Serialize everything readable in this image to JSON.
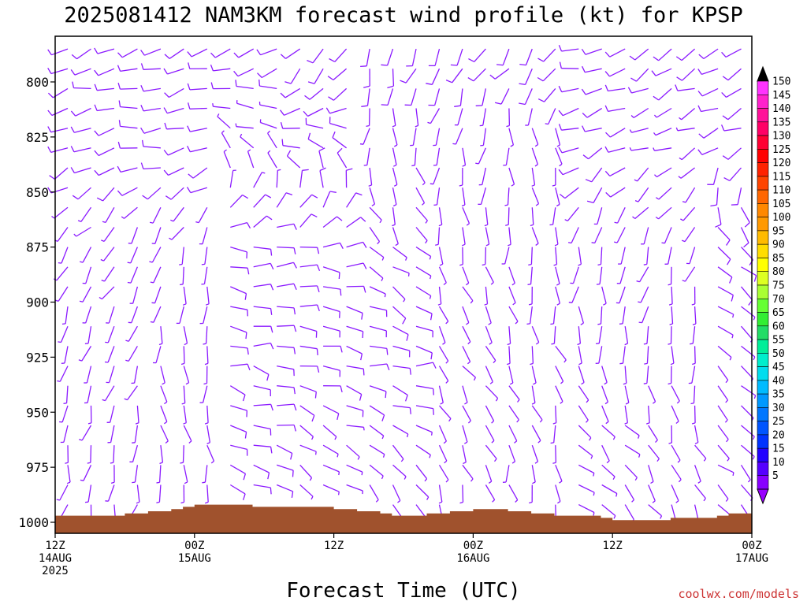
{
  "chart_data": {
    "type": "wind-barb time-height",
    "title": "2025081412 NAM3KM forecast wind profile (kt) for KPSP",
    "xlabel": "Forecast Time (UTC)",
    "ylabel": "",
    "y_ticks": [
      800,
      825,
      850,
      875,
      900,
      925,
      950,
      975,
      1000
    ],
    "y_range_hpa": [
      780,
      1005
    ],
    "x_range_hours": [
      0,
      60
    ],
    "x_ticks": [
      {
        "hour": 0,
        "line1": "12Z",
        "line2": "14AUG",
        "line3": "2025"
      },
      {
        "hour": 12,
        "line1": "00Z",
        "line2": "15AUG",
        "line3": ""
      },
      {
        "hour": 24,
        "line1": "12Z",
        "line2": "",
        "line3": ""
      },
      {
        "hour": 36,
        "line1": "00Z",
        "line2": "16AUG",
        "line3": ""
      },
      {
        "hour": 48,
        "line1": "12Z",
        "line2": "",
        "line3": ""
      },
      {
        "hour": 60,
        "line1": "00Z",
        "line2": "17AUG",
        "line3": ""
      }
    ],
    "barb_color": "#8b1aff",
    "terrain_color": "#a0522d",
    "surface_pressure_hpa": [
      [
        0,
        997
      ],
      [
        2,
        997
      ],
      [
        4,
        997
      ],
      [
        6,
        996
      ],
      [
        8,
        995
      ],
      [
        10,
        994
      ],
      [
        11,
        993
      ],
      [
        12,
        992
      ],
      [
        14,
        992
      ],
      [
        16,
        992
      ],
      [
        17,
        993
      ],
      [
        19,
        993
      ],
      [
        21,
        993
      ],
      [
        23,
        993
      ],
      [
        24,
        994
      ],
      [
        26,
        995
      ],
      [
        28,
        996
      ],
      [
        29,
        997
      ],
      [
        30,
        997
      ],
      [
        32,
        996
      ],
      [
        34,
        995
      ],
      [
        36,
        994
      ],
      [
        37,
        994
      ],
      [
        38,
        994
      ],
      [
        39,
        995
      ],
      [
        41,
        996
      ],
      [
        43,
        997
      ],
      [
        45,
        997
      ],
      [
        47,
        998
      ],
      [
        48,
        999
      ],
      [
        49,
        999
      ],
      [
        51,
        999
      ],
      [
        52,
        999
      ],
      [
        53,
        998
      ],
      [
        55,
        998
      ],
      [
        57,
        997
      ],
      [
        58,
        996
      ],
      [
        60,
        996
      ]
    ],
    "wind_profile": [
      {
        "period_hours": [
          0,
          6
        ],
        "levels": [
          {
            "p": 790,
            "dir": 250,
            "spd": 10
          },
          {
            "p": 825,
            "dir": 260,
            "spd": 10
          },
          {
            "p": 875,
            "dir": 210,
            "spd": 5
          },
          {
            "p": 925,
            "dir": 200,
            "spd": 5
          },
          {
            "p": 975,
            "dir": 190,
            "spd": 5
          }
        ]
      },
      {
        "period_hours": [
          6,
          12
        ],
        "levels": [
          {
            "p": 790,
            "dir": 250,
            "spd": 10
          },
          {
            "p": 825,
            "dir": 270,
            "spd": 10
          },
          {
            "p": 875,
            "dir": 200,
            "spd": 5
          },
          {
            "p": 925,
            "dir": 180,
            "spd": 5
          },
          {
            "p": 975,
            "dir": 170,
            "spd": 5
          }
        ]
      },
      {
        "period_hours": [
          12,
          18
        ],
        "levels": [
          {
            "p": 790,
            "dir": 240,
            "spd": 10
          },
          {
            "p": 825,
            "dir": 300,
            "spd": 5
          },
          {
            "p": 875,
            "dir": 90,
            "spd": 10
          },
          {
            "p": 925,
            "dir": 100,
            "spd": 10
          },
          {
            "p": 975,
            "dir": 110,
            "spd": 10
          }
        ]
      },
      {
        "period_hours": [
          18,
          24
        ],
        "levels": [
          {
            "p": 790,
            "dir": 220,
            "spd": 10
          },
          {
            "p": 825,
            "dir": 280,
            "spd": 10
          },
          {
            "p": 875,
            "dir": 90,
            "spd": 10
          },
          {
            "p": 925,
            "dir": 100,
            "spd": 10
          },
          {
            "p": 975,
            "dir": 120,
            "spd": 5
          }
        ]
      },
      {
        "period_hours": [
          24,
          30
        ],
        "levels": [
          {
            "p": 790,
            "dir": 200,
            "spd": 10
          },
          {
            "p": 825,
            "dir": 180,
            "spd": 5
          },
          {
            "p": 875,
            "dir": 140,
            "spd": 5
          },
          {
            "p": 925,
            "dir": 90,
            "spd": 10
          },
          {
            "p": 975,
            "dir": 150,
            "spd": 5
          }
        ]
      },
      {
        "period_hours": [
          30,
          36
        ],
        "levels": [
          {
            "p": 790,
            "dir": 210,
            "spd": 10
          },
          {
            "p": 825,
            "dir": 190,
            "spd": 5
          },
          {
            "p": 875,
            "dir": 170,
            "spd": 5
          },
          {
            "p": 925,
            "dir": 150,
            "spd": 5
          },
          {
            "p": 975,
            "dir": 160,
            "spd": 5
          }
        ]
      },
      {
        "period_hours": [
          36,
          42
        ],
        "levels": [
          {
            "p": 790,
            "dir": 220,
            "spd": 10
          },
          {
            "p": 825,
            "dir": 170,
            "spd": 5
          },
          {
            "p": 875,
            "dir": 180,
            "spd": 5
          },
          {
            "p": 925,
            "dir": 160,
            "spd": 5
          },
          {
            "p": 975,
            "dir": 170,
            "spd": 5
          }
        ]
      },
      {
        "period_hours": [
          42,
          48
        ],
        "levels": [
          {
            "p": 790,
            "dir": 260,
            "spd": 10
          },
          {
            "p": 825,
            "dir": 250,
            "spd": 10
          },
          {
            "p": 875,
            "dir": 190,
            "spd": 5
          },
          {
            "p": 925,
            "dir": 170,
            "spd": 5
          },
          {
            "p": 975,
            "dir": 130,
            "spd": 5
          }
        ]
      },
      {
        "period_hours": [
          48,
          54
        ],
        "levels": [
          {
            "p": 790,
            "dir": 240,
            "spd": 10
          },
          {
            "p": 825,
            "dir": 250,
            "spd": 5
          },
          {
            "p": 875,
            "dir": 200,
            "spd": 5
          },
          {
            "p": 925,
            "dir": 180,
            "spd": 5
          },
          {
            "p": 975,
            "dir": 150,
            "spd": 5
          }
        ]
      },
      {
        "period_hours": [
          54,
          60
        ],
        "levels": [
          {
            "p": 790,
            "dir": 230,
            "spd": 10
          },
          {
            "p": 825,
            "dir": 250,
            "spd": 10
          },
          {
            "p": 875,
            "dir": 120,
            "spd": 10
          },
          {
            "p": 925,
            "dir": 140,
            "spd": 5
          },
          {
            "p": 975,
            "dir": 130,
            "spd": 5
          }
        ]
      }
    ],
    "colorbar": {
      "labels": [
        "150",
        "145",
        "140",
        "135",
        "130",
        "125",
        "120",
        "115",
        "110",
        "105",
        "100",
        "95",
        "90",
        "85",
        "80",
        "75",
        "70",
        "65",
        "60",
        "55",
        "50",
        "45",
        "40",
        "35",
        "30",
        "25",
        "20",
        "15",
        "10",
        "5"
      ],
      "colors": [
        "#ff33ff",
        "#ff22cc",
        "#ff1199",
        "#ff0066",
        "#ff0033",
        "#ff0000",
        "#ff2200",
        "#ff4400",
        "#ff6600",
        "#ff8800",
        "#ff9900",
        "#ffbb00",
        "#ffdd00",
        "#ffff00",
        "#ddff22",
        "#aaff33",
        "#66ff33",
        "#33ee33",
        "#22dd66",
        "#00ee99",
        "#00eecc",
        "#00ddee",
        "#00bbff",
        "#0099ff",
        "#0077ff",
        "#0055ff",
        "#0033ff",
        "#2200ff",
        "#5500ff",
        "#8800ff"
      ],
      "top_arrow_color": "#000000",
      "bottom_arrow_color": "#9900ff"
    },
    "credit": "coolwx.com/models"
  }
}
